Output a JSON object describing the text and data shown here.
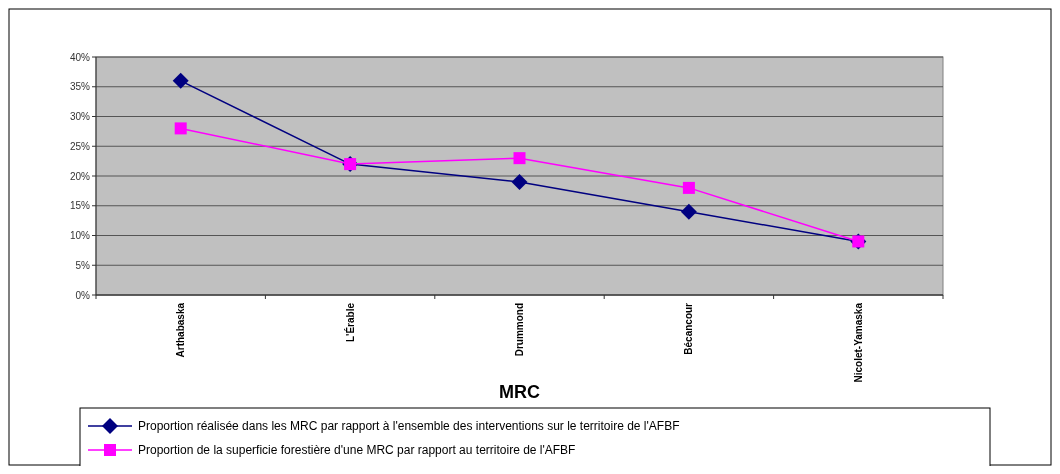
{
  "chart_data": {
    "type": "line",
    "xlabel": "MRC",
    "categories": [
      "Arthabaska",
      "L'Érable",
      "Drummond",
      "Bécancour",
      "Nicolet-Yamaska"
    ],
    "series": [
      {
        "name": "Proportion réalisée dans les MRC par rapport à l'ensemble des interventions sur le territoire de l'AFBF",
        "color": "#000080",
        "marker": "diamond",
        "values": [
          36,
          22,
          19,
          14,
          9
        ]
      },
      {
        "name": "Proportion de la superficie forestière d'une MRC par rapport au territoire de l'AFBF",
        "color": "#ff00ff",
        "marker": "square",
        "values": [
          28,
          22,
          23,
          18,
          9
        ]
      }
    ],
    "ylim": [
      0,
      40
    ],
    "yticks": [
      {
        "value": 0,
        "label": "0%"
      },
      {
        "value": 5,
        "label": "5%"
      },
      {
        "value": 10,
        "label": "10%"
      },
      {
        "value": 15,
        "label": "15%"
      },
      {
        "value": 20,
        "label": "20%"
      },
      {
        "value": 25,
        "label": "25%"
      },
      {
        "value": 30,
        "label": "30%"
      },
      {
        "value": 35,
        "label": "35%"
      },
      {
        "value": 40,
        "label": "40%"
      }
    ],
    "grid": "y",
    "legend": "bottom"
  }
}
